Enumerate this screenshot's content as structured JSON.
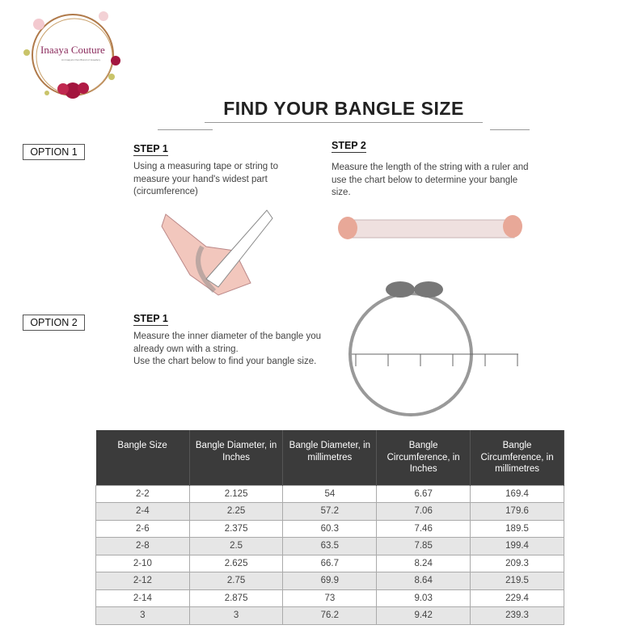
{
  "logo": {
    "brand": "Inaaya Couture",
    "tagline": "An Inaaya's Own Brand of Jewellery"
  },
  "title": "FIND YOUR BANGLE SIZE",
  "option1": {
    "label": "OPTION 1",
    "step1": {
      "label": "STEP 1",
      "text": "Using a measuring tape or string to measure your hand's widest part (circumference)"
    },
    "step2": {
      "label": "STEP 2",
      "text": "Measure the length of the string with a ruler and use the chart below to determine your bangle size."
    }
  },
  "option2": {
    "label": "OPTION 2",
    "step1": {
      "label": "STEP 1",
      "text": "Measure the inner diameter of the bangle you already own with a string.",
      "text2": "Use the chart below to find your bangle size."
    }
  },
  "table": {
    "headers": [
      "Bangle Size",
      "Bangle Diameter, in Inches",
      "Bangle Diameter, in millimetres",
      "Bangle Circumference, in Inches",
      "Bangle Circumference, in millimetres"
    ],
    "rows": [
      [
        "2-2",
        "2.125",
        "54",
        "6.67",
        "169.4"
      ],
      [
        "2-4",
        "2.25",
        "57.2",
        "7.06",
        "179.6"
      ],
      [
        "2-6",
        "2.375",
        "60.3",
        "7.46",
        "189.5"
      ],
      [
        "2-8",
        "2.5",
        "63.5",
        "7.85",
        "199.4"
      ],
      [
        "2-10",
        "2.625",
        "66.7",
        "8.24",
        "209.3"
      ],
      [
        "2-12",
        "2.75",
        "69.9",
        "8.64",
        "219.5"
      ],
      [
        "2-14",
        "2.875",
        "73",
        "9.03",
        "229.4"
      ],
      [
        "3",
        "3",
        "76.2",
        "9.42",
        "239.3"
      ]
    ]
  }
}
